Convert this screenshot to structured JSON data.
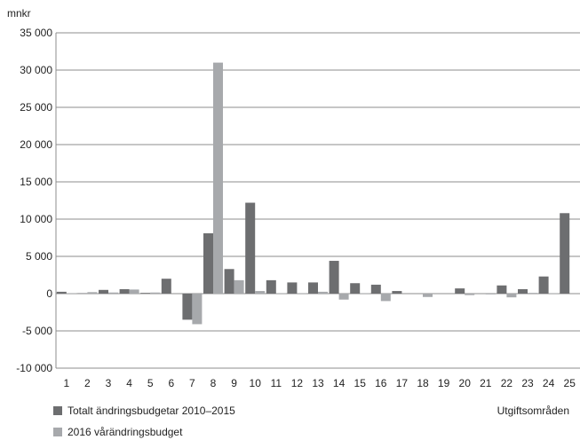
{
  "chart_data": {
    "type": "bar",
    "title": "",
    "unit_label": "mnkr",
    "xlabel": "Utgiftsområden",
    "ylabel": "",
    "ylim": [
      -10000,
      35000
    ],
    "yticks": [
      35000,
      30000,
      25000,
      20000,
      15000,
      10000,
      5000,
      0,
      -5000,
      -10000
    ],
    "ytick_labels": [
      "35 000",
      "30 000",
      "25 000",
      "20 000",
      "15 000",
      "10 000",
      "5 000",
      "0",
      "-5 000",
      "-10 000"
    ],
    "grid": true,
    "legend_position": "bottom-left",
    "categories": [
      "1",
      "2",
      "3",
      "4",
      "5",
      "6",
      "7",
      "8",
      "9",
      "10",
      "11",
      "12",
      "13",
      "14",
      "15",
      "16",
      "17",
      "18",
      "19",
      "20",
      "21",
      "22",
      "23",
      "24",
      "25"
    ],
    "series": [
      {
        "name": "Totalt ändringsbudgetar 2010–2015",
        "color": "#6d6e70",
        "values": [
          250,
          50,
          500,
          600,
          100,
          2000,
          -3500,
          8100,
          3300,
          12200,
          1800,
          1500,
          1500,
          4400,
          1400,
          1200,
          350,
          0,
          0,
          700,
          0,
          1100,
          600,
          2300,
          10800
        ]
      },
      {
        "name": "2016 vårändringsbudget",
        "color": "#a7a9ac",
        "values": [
          50,
          200,
          150,
          550,
          150,
          0,
          -4100,
          31000,
          1800,
          350,
          50,
          50,
          250,
          -800,
          50,
          -1000,
          0,
          -450,
          0,
          -200,
          -100,
          -500,
          100,
          50,
          0
        ]
      }
    ]
  }
}
